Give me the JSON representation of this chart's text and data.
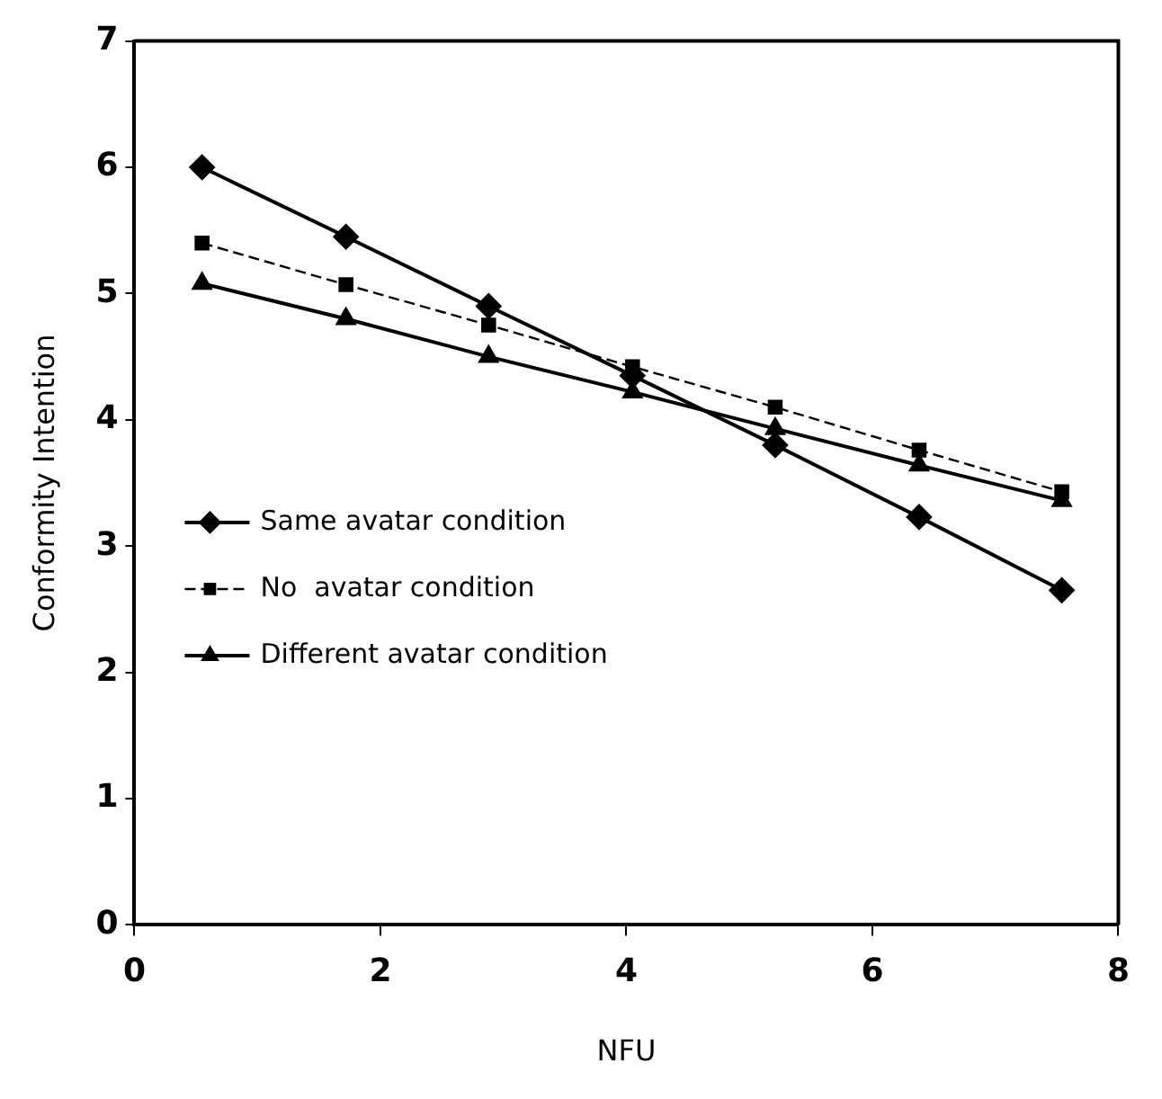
{
  "chart_data": {
    "type": "line",
    "xlabel": "NFU",
    "ylabel": "Conformity Intention",
    "xlim": [
      0,
      8
    ],
    "xticks": [
      0,
      2,
      4,
      6,
      8
    ],
    "ylim": [
      0,
      7
    ],
    "yticks": [
      0,
      1,
      2,
      3,
      4,
      5,
      6,
      7
    ],
    "grid": false,
    "legend": "left",
    "x": [
      0.55,
      1.72,
      2.88,
      4.05,
      5.21,
      6.38,
      7.54
    ],
    "series": [
      {
        "name": "Same avatar condition",
        "color": "#000000",
        "marker": "diamond",
        "line_style": "solid",
        "values": [
          6.0,
          5.45,
          4.9,
          4.35,
          3.8,
          3.23,
          2.65
        ]
      },
      {
        "name": "No  avatar condition",
        "color": "#000000",
        "marker": "square",
        "line_style": "dashed",
        "values": [
          5.4,
          5.07,
          4.75,
          4.42,
          4.1,
          3.76,
          3.43
        ]
      },
      {
        "name": "Different avatar condition",
        "color": "#000000",
        "marker": "triangle",
        "line_style": "solid",
        "values": [
          5.08,
          4.8,
          4.5,
          4.22,
          3.93,
          3.64,
          3.36
        ]
      }
    ]
  }
}
